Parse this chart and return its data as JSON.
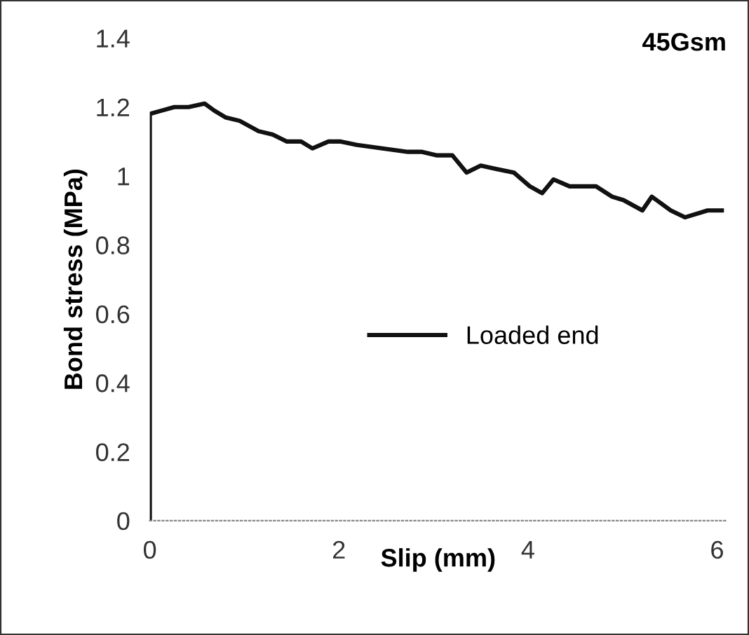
{
  "chart_data": {
    "type": "line",
    "title": "45Gsm",
    "xlabel": "Slip (mm)",
    "ylabel": "Bond stress (MPa)",
    "xlim": [
      0,
      6.1
    ],
    "xticks": [
      0,
      2,
      4,
      6
    ],
    "ylim": [
      0,
      1.4
    ],
    "yticks": [
      0,
      0.2,
      0.4,
      0.6,
      0.8,
      1,
      1.2,
      1.4
    ],
    "grid": false,
    "legend": "center",
    "marker": "none",
    "line_style": "solid",
    "series": [
      {
        "name": "Loaded end",
        "color": "#111111",
        "x": [
          0,
          0,
          0.13,
          0.26,
          0.41,
          0.58,
          0.68,
          0.8,
          0.95,
          1.15,
          1.3,
          1.45,
          1.6,
          1.72,
          1.89,
          2.02,
          2.19,
          2.46,
          2.73,
          2.88,
          3.03,
          3.2,
          3.35,
          3.5,
          3.67,
          3.85,
          4.02,
          4.15,
          4.27,
          4.44,
          4.72,
          4.89,
          5.01,
          5.21,
          5.31,
          5.51,
          5.66,
          5.9,
          6.05
        ],
        "values": [
          0,
          1.18,
          1.19,
          1.2,
          1.2,
          1.21,
          1.19,
          1.17,
          1.16,
          1.13,
          1.12,
          1.1,
          1.1,
          1.08,
          1.1,
          1.1,
          1.09,
          1.08,
          1.07,
          1.07,
          1.06,
          1.06,
          1.01,
          1.03,
          1.02,
          1.01,
          0.97,
          0.95,
          0.99,
          0.97,
          0.97,
          0.94,
          0.93,
          0.9,
          0.94,
          0.9,
          0.88,
          0.9,
          0.9
        ]
      }
    ]
  }
}
